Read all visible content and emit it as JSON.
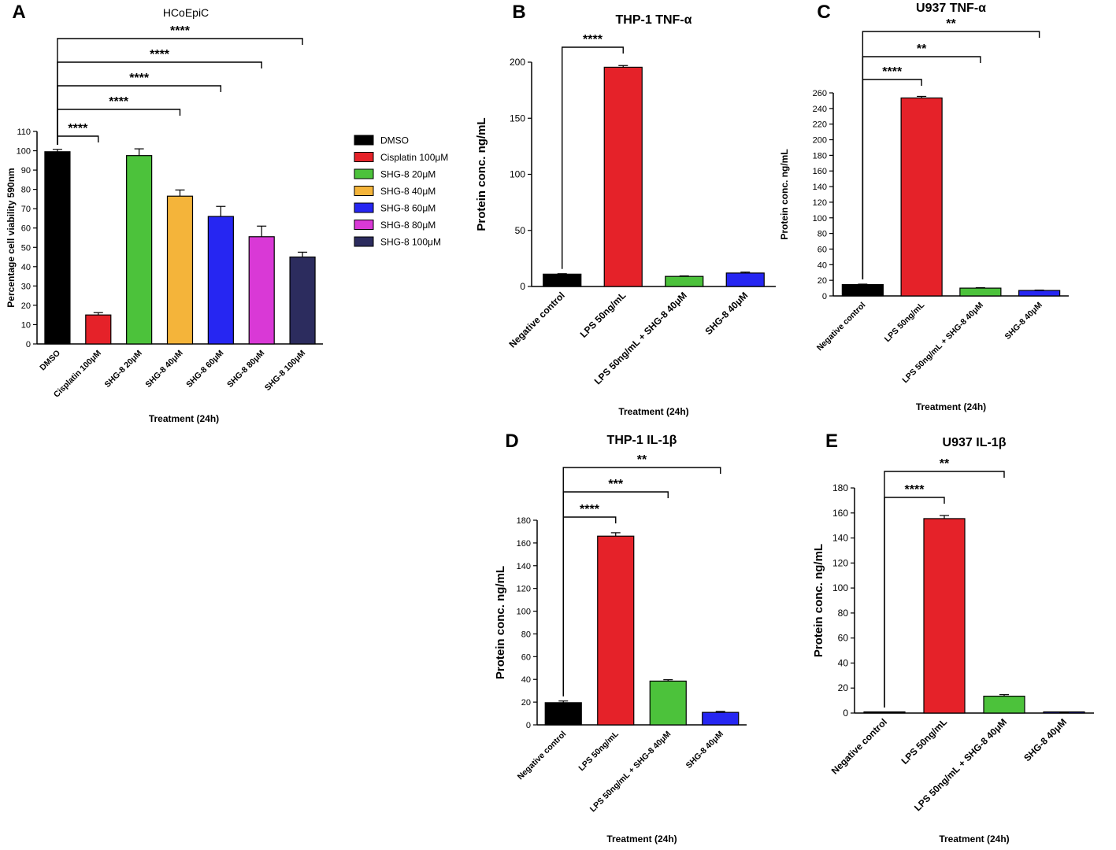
{
  "chart_data": [
    {
      "id": "A",
      "panel_label": "A",
      "type": "bar",
      "title": "HCoEpiC",
      "ylabel": "Percentage cell viability 590nm",
      "xlabel": "Treatment (24h)",
      "categories": [
        "DMSO",
        "Cisplatin 100μM",
        "SHG-8 20μM",
        "SHG-8 40μM",
        "SHG-8 60μM",
        "SHG-8 80μM",
        "SHG-8 100μM"
      ],
      "values": [
        99.5,
        15,
        97.5,
        76.5,
        66,
        55.5,
        45
      ],
      "errors": [
        1.2,
        1.2,
        3.5,
        3.2,
        5.2,
        5.5,
        2.5
      ],
      "colors": [
        "#000000",
        "#e52229",
        "#4cc23b",
        "#f4b43a",
        "#2626f2",
        "#d939d6",
        "#2c2c5e"
      ],
      "ylim": [
        0,
        110
      ],
      "yticks": [
        0,
        10,
        20,
        30,
        40,
        50,
        60,
        70,
        80,
        90,
        100,
        110
      ],
      "significance": [
        {
          "from": 0,
          "to": 1,
          "label": "****"
        },
        {
          "from": 0,
          "to": 3,
          "label": "****"
        },
        {
          "from": 0,
          "to": 4,
          "label": "****"
        },
        {
          "from": 0,
          "to": 5,
          "label": "****"
        },
        {
          "from": 0,
          "to": 6,
          "label": "****"
        }
      ],
      "legend": {
        "position": "right",
        "items": [
          {
            "label": "DMSO",
            "color": "#000000"
          },
          {
            "label": "Cisplatin 100μM",
            "color": "#e52229"
          },
          {
            "label": "SHG-8 20μM",
            "color": "#4cc23b"
          },
          {
            "label": "SHG-8 40μM",
            "color": "#f4b43a"
          },
          {
            "label": "SHG-8 60μM",
            "color": "#2626f2"
          },
          {
            "label": "SHG-8 80μM",
            "color": "#d939d6"
          },
          {
            "label": "SHG-8 100μM",
            "color": "#2c2c5e"
          }
        ]
      }
    },
    {
      "id": "B",
      "panel_label": "B",
      "type": "bar",
      "title": "THP-1 TNF-α",
      "ylabel": "Protein conc. ng/mL",
      "xlabel": "Treatment (24h)",
      "categories": [
        "Negative control",
        "LPS 50ng/mL",
        "LPS 50ng/mL + SHG-8 40μM",
        "SHG-8 40μM"
      ],
      "values": [
        11,
        195.5,
        9,
        12
      ],
      "errors": [
        0.4,
        1.5,
        0.4,
        0.8
      ],
      "colors": [
        "#000000",
        "#e52229",
        "#4cc23b",
        "#2626f2"
      ],
      "ylim": [
        0,
        200
      ],
      "yticks": [
        0,
        50,
        100,
        150,
        200
      ],
      "significance": [
        {
          "from": 0,
          "to": 1,
          "label": "****"
        }
      ]
    },
    {
      "id": "C",
      "panel_label": "C",
      "type": "bar",
      "title": "U937 TNF-α",
      "ylabel": "Protein conc. ng/mL",
      "xlabel": "Treatment (24h)",
      "categories": [
        "Negative control",
        "LPS 50ng/mL",
        "LPS 50ng/mL + SHG-8 40μM",
        "SHG-8 40μM"
      ],
      "values": [
        14.5,
        253.5,
        10,
        7
      ],
      "errors": [
        0.6,
        2,
        0.6,
        0.5
      ],
      "colors": [
        "#000000",
        "#e52229",
        "#4cc23b",
        "#2626f2"
      ],
      "ylim": [
        0,
        260
      ],
      "yticks": [
        0,
        20,
        40,
        60,
        80,
        100,
        120,
        140,
        160,
        180,
        200,
        220,
        240,
        260
      ],
      "significance": [
        {
          "from": 0,
          "to": 1,
          "label": "****"
        },
        {
          "from": 0,
          "to": 2,
          "label": "**"
        },
        {
          "from": 0,
          "to": 3,
          "label": "**"
        }
      ]
    },
    {
      "id": "D",
      "panel_label": "D",
      "type": "bar",
      "title": "THP-1 IL-1β",
      "ylabel": "Protein conc. ng/mL",
      "xlabel": "Treatment (24h)",
      "categories": [
        "Negative control",
        "LPS 50ng/mL",
        "LPS 50ng/mL + SHG-8 40μM",
        "SHG-8 40μM"
      ],
      "values": [
        19.5,
        166,
        38.5,
        11
      ],
      "errors": [
        1.5,
        3,
        1.2,
        0.8
      ],
      "colors": [
        "#000000",
        "#e52229",
        "#4cc23b",
        "#2626f2"
      ],
      "ylim": [
        0,
        180
      ],
      "yticks": [
        0,
        20,
        40,
        60,
        80,
        100,
        120,
        140,
        160,
        180
      ],
      "significance": [
        {
          "from": 0,
          "to": 1,
          "label": "****"
        },
        {
          "from": 0,
          "to": 2,
          "label": "***"
        },
        {
          "from": 0,
          "to": 3,
          "label": "**"
        }
      ]
    },
    {
      "id": "E",
      "panel_label": "E",
      "type": "bar",
      "title": "U937 IL-1β",
      "ylabel": "Protein conc. ng/mL",
      "xlabel": "Treatment (24h)",
      "categories": [
        "Negative control",
        "LPS 50ng/mL",
        "LPS 50ng/mL + SHG-8 40μM",
        "SHG-8 40μM"
      ],
      "values": [
        0.5,
        155.5,
        13.5,
        0.2
      ],
      "errors": [
        0.2,
        2.5,
        1.2,
        0.1
      ],
      "colors": [
        "#000000",
        "#e52229",
        "#4cc23b",
        "#2626f2"
      ],
      "ylim": [
        0,
        180
      ],
      "yticks": [
        0,
        20,
        40,
        60,
        80,
        100,
        120,
        140,
        160,
        180
      ],
      "significance": [
        {
          "from": 0,
          "to": 1,
          "label": "****"
        },
        {
          "from": 0,
          "to": 2,
          "label": "**"
        }
      ]
    }
  ]
}
